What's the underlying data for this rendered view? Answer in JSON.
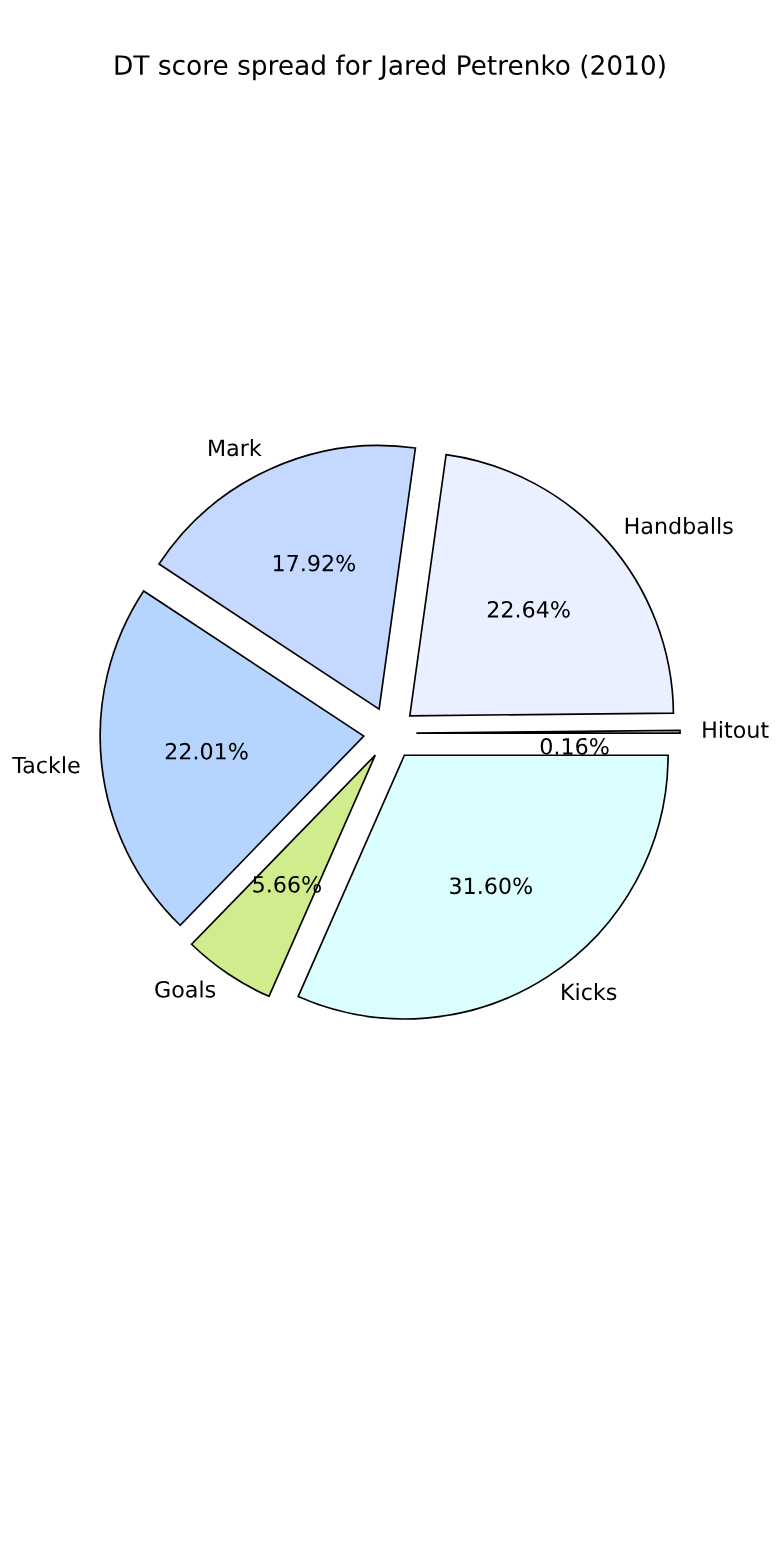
{
  "chart_data": {
    "type": "pie",
    "title": "DT score spread for Jared Petrenko (2010)",
    "categories": [
      "Hitout",
      "Handballs",
      "Mark",
      "Tackle",
      "Goals",
      "Kicks"
    ],
    "values": [
      0.16,
      22.64,
      17.92,
      22.01,
      5.66,
      31.6
    ],
    "value_labels": [
      "0.16%",
      "22.64%",
      "17.92%",
      "22.01%",
      "5.66%",
      "31.60%"
    ],
    "colors": [
      "#ffffff",
      "#eaf0ff",
      "#c5d8ff",
      "#b5d5ff",
      "#d0ec8c",
      "#dbffff"
    ]
  }
}
